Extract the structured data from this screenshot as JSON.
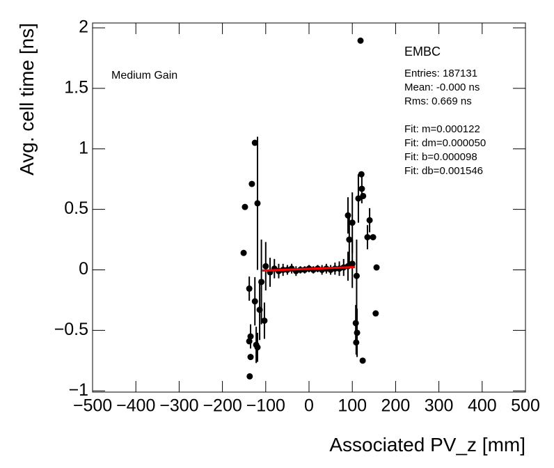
{
  "chart_data": {
    "type": "scatter",
    "xlabel": "Associated PV_z [mm]",
    "ylabel": "Avg. cell time [ns]",
    "annotations": [
      "Medium Gain"
    ],
    "stats_title": "EMBC",
    "stats": [
      "Entries: 187131",
      "Mean: -0.000 ns",
      "Rms: 0.669 ns",
      "Fit: m=0.000122",
      "Fit: dm=0.000050",
      "Fit: b=0.000098",
      "Fit: db=0.001546"
    ],
    "color": "#000000",
    "x": [
      119,
      -125,
      -132,
      -148,
      -119,
      -151,
      -138,
      -135,
      -138,
      -135,
      -137,
      -122,
      -119,
      -125,
      -114,
      -103,
      121,
      122,
      114,
      125,
      135,
      140,
      148,
      156,
      154,
      124,
      111,
      109,
      108,
      100,
      93,
      90,
      -110,
      -100,
      -90,
      -80,
      -70,
      -60,
      -50,
      -40,
      -30,
      -20,
      -10,
      0,
      10,
      20,
      30,
      40,
      50,
      60,
      70,
      80,
      90,
      100,
      110
    ],
    "values": [
      1.894,
      1.05,
      0.71,
      0.52,
      0.55,
      0.14,
      -0.155,
      -0.55,
      -0.59,
      -0.72,
      -0.88,
      -0.62,
      -0.64,
      -0.26,
      -0.33,
      -0.42,
      0.79,
      0.67,
      0.59,
      0.61,
      0.27,
      0.41,
      0.27,
      0.02,
      -0.36,
      -0.75,
      -0.52,
      -0.6,
      -0.44,
      0.39,
      0.25,
      0.45,
      -0.1,
      0.03,
      -0.02,
      0.01,
      -0.01,
      0.0,
      0.0,
      0.01,
      -0.01,
      0.0,
      0.0,
      0.01,
      0.0,
      0.01,
      0.0,
      0.01,
      0.0,
      0.01,
      0.01,
      0.02,
      0.03,
      0.05,
      -0.05
    ],
    "errors": [
      0,
      0,
      0,
      0,
      0.55,
      0,
      0.1,
      0.1,
      0,
      0,
      0,
      0.15,
      0.12,
      0.2,
      0.25,
      0.15,
      0,
      0.12,
      0.2,
      0,
      0.1,
      0.1,
      0,
      0,
      0,
      0,
      0.2,
      0.1,
      0.15,
      0.25,
      0.2,
      0.15,
      0.35,
      0.2,
      0.12,
      0.08,
      0.06,
      0.05,
      0.04,
      0.04,
      0.04,
      0.03,
      0.03,
      0.03,
      0.03,
      0.03,
      0.04,
      0.04,
      0.04,
      0.05,
      0.06,
      0.07,
      0.12,
      0.2,
      0.3
    ],
    "fit_line": {
      "x": [
        -108,
        106
      ],
      "y": [
        -0.006,
        0.023
      ],
      "color": "#ff0000"
    },
    "xlim": [
      -500,
      500
    ],
    "ylim": [
      -1.01,
      2.04
    ],
    "xticks": [
      {
        "value": -500,
        "label": "−500"
      },
      {
        "value": -400,
        "label": "−400"
      },
      {
        "value": -300,
        "label": "−300"
      },
      {
        "value": -200,
        "label": "−200"
      },
      {
        "value": -100,
        "label": "−100"
      },
      0,
      100,
      200,
      300,
      400,
      500
    ],
    "yticks": [
      {
        "value": -1,
        "label": "−1"
      },
      {
        "value": -0.5,
        "label": "−0.5"
      },
      0,
      0.5,
      1,
      1.5,
      2
    ]
  }
}
